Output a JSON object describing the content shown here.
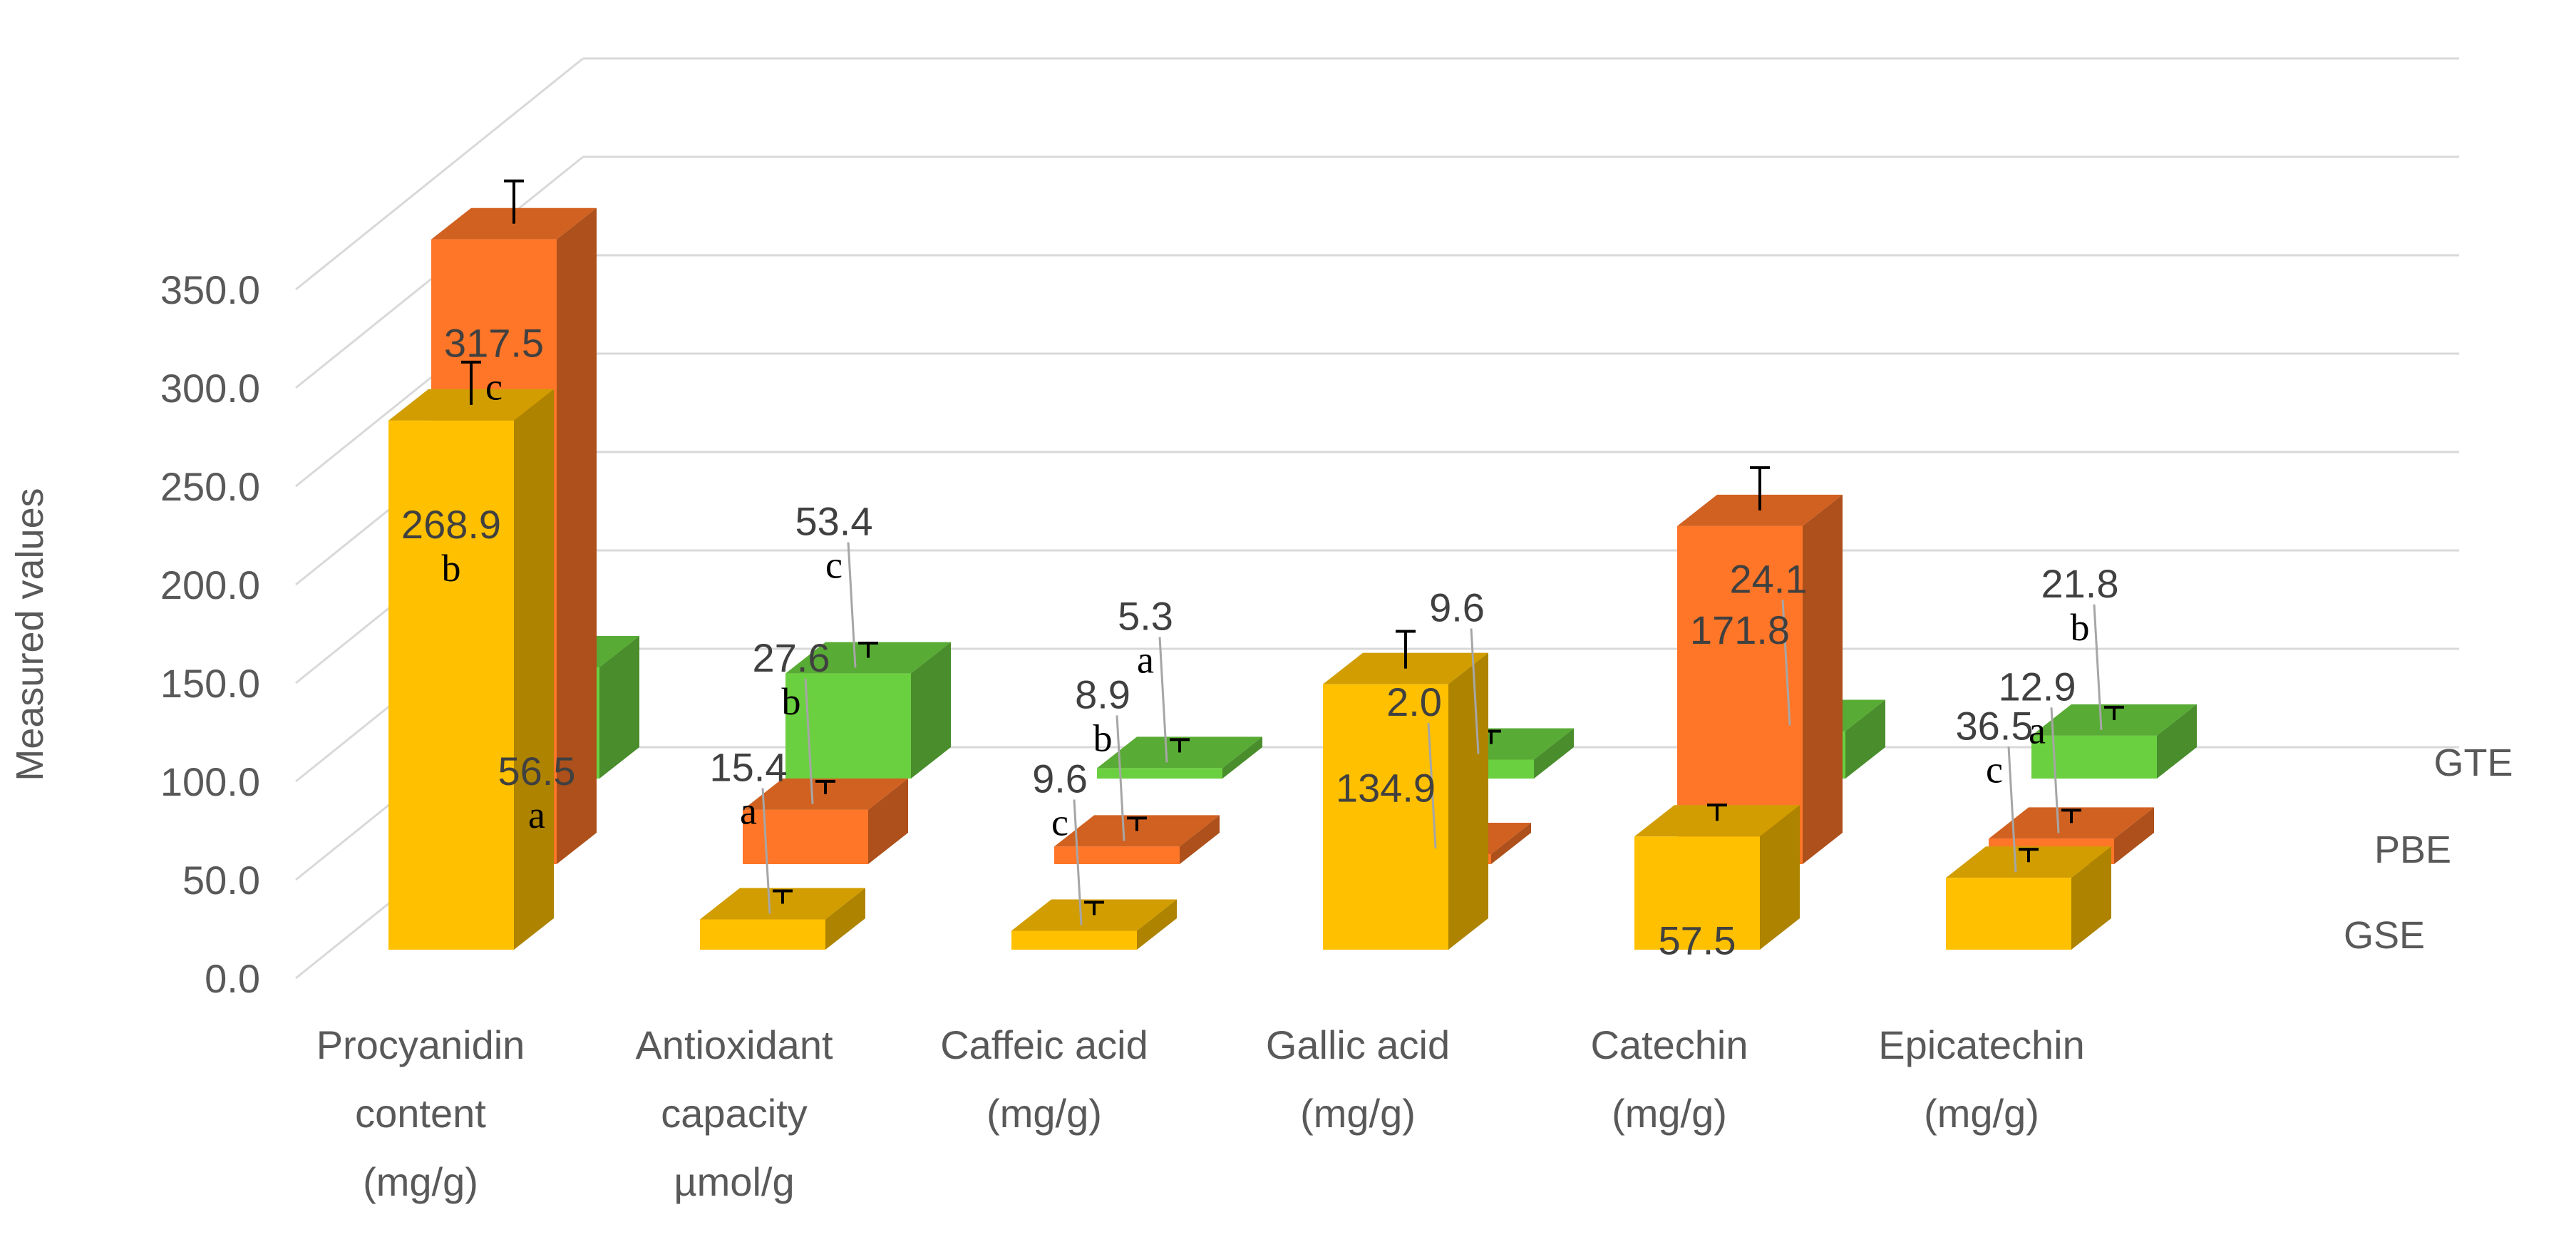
{
  "chart_data": {
    "type": "bar",
    "subtype": "3d-clustered-columns",
    "title": "",
    "xlabel": "",
    "ylabel": "Measured values",
    "ylim": [
      0,
      350
    ],
    "yticks": [
      "0.0",
      "50.0",
      "100.0",
      "150.0",
      "200.0",
      "250.0",
      "300.0",
      "350.0"
    ],
    "grid": true,
    "categories": [
      [
        "Procyanidin",
        "content",
        "(mg/g)"
      ],
      [
        "Antioxidant",
        "capacity",
        "µmol/g"
      ],
      [
        "Caffeic acid",
        "(mg/g)"
      ],
      [
        "Gallic acid",
        "(mg/g)"
      ],
      [
        "Catechin",
        "(mg/g)"
      ],
      [
        "Epicatechin",
        "(mg/g)"
      ]
    ],
    "series": [
      {
        "name": "GSE",
        "color": "#FFC000",
        "values": [
          268.9,
          15.4,
          9.6,
          134.9,
          57.5,
          36.5
        ],
        "labels": [
          "268.9",
          "15.4",
          "9.6",
          "134.9",
          "57.5",
          "36.5"
        ],
        "letters": [
          "b",
          "a",
          "c",
          "",
          "",
          "c"
        ]
      },
      {
        "name": "PBE",
        "color": "#FF7628",
        "values": [
          317.5,
          27.6,
          8.9,
          2.0,
          171.8,
          12.9
        ],
        "labels": [
          "317.5",
          "27.6",
          "8.9",
          "2.0",
          "171.8",
          "12.9"
        ],
        "letters": [
          "c",
          "b",
          "b",
          "",
          "",
          "a"
        ]
      },
      {
        "name": "GTE",
        "color": "#6BD040",
        "values": [
          56.5,
          53.4,
          5.3,
          9.6,
          24.1,
          21.8
        ],
        "labels": [
          "56.5",
          "53.4",
          "5.3",
          "9.6",
          "24.1",
          "21.8"
        ],
        "letters": [
          "a",
          "c",
          "a",
          "",
          "",
          "b"
        ]
      }
    ]
  }
}
